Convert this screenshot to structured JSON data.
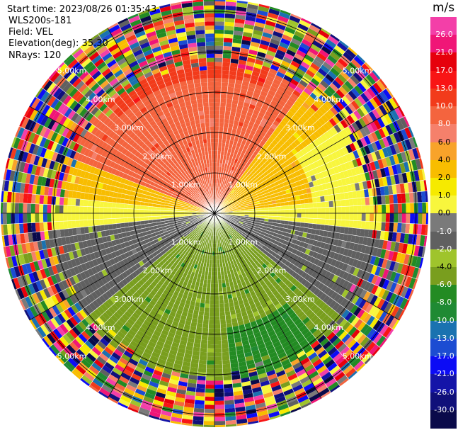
{
  "header": {
    "start_time": "Start time: 2023/08/26 01:35:43",
    "instrument": "WLS200s-181",
    "field": "Field: VEL",
    "elevation": "Elevation(deg): 35.30",
    "nrays": "NRays: 120"
  },
  "colorbar": {
    "unit": "m/s",
    "ticks": [
      "26.0",
      "21.0",
      "17.0",
      "13.0",
      "10.0",
      "8.0",
      "6.0",
      "4.0",
      "2.0",
      "1.0",
      "0.0",
      "-1.0",
      "-2.0",
      "-4.0",
      "-6.0",
      "-8.0",
      "-10.0",
      "-13.0",
      "-17.0",
      "-21.0",
      "-26.0",
      "-30.0"
    ],
    "colors": [
      "#f33fa8",
      "#f01677",
      "#e6000c",
      "#f81515",
      "#f23b1b",
      "#f4643e",
      "#f5806b",
      "#f8a32a",
      "#f8bd00",
      "#f6ea00",
      "#f8f63d",
      "#7a7a7a",
      "#606060",
      "#9fc42c",
      "#799e1e",
      "#238b23",
      "#1f8a33",
      "#1a72b0",
      "#1c4cd2",
      "#0c0cf5",
      "#1414a8",
      "#10107a",
      "#0a0a4a"
    ]
  },
  "chart_data": {
    "type": "ppi",
    "field": "VEL",
    "nrays": 120,
    "ring_labels": [
      "1.00km",
      "2.00km",
      "3.00km",
      "4.00km",
      "5.00km"
    ],
    "rings_km": [
      1,
      2,
      3,
      4,
      5
    ],
    "max_range_km": 5.3,
    "pattern": {
      "north_sector": "8.0",
      "east_north_sector": "2.0",
      "horizontal_band": "0.0",
      "south_sector": "-6.0",
      "south_east_sector": "-8.0",
      "outer_rings": "noise"
    }
  }
}
